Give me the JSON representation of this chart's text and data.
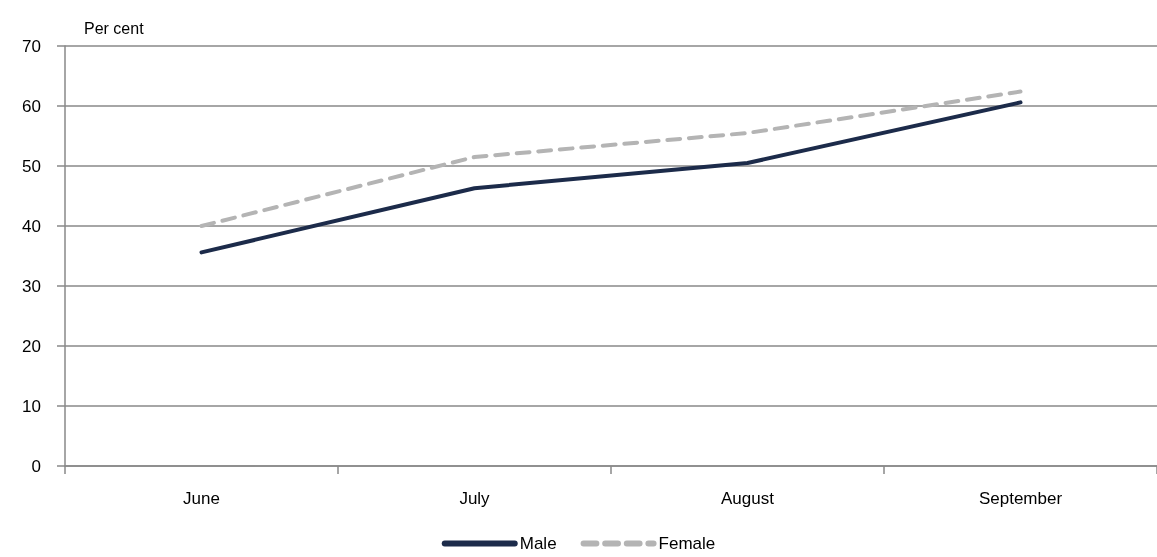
{
  "chart_data": {
    "type": "line",
    "ylabel": "Per cent",
    "categories": [
      "June",
      "July",
      "August",
      "September"
    ],
    "series": [
      {
        "name": "Male",
        "color": "#1c2b4a",
        "values": [
          35.6,
          46.3,
          50.5,
          60.6
        ],
        "line_style": "solid"
      },
      {
        "name": "Female",
        "color": "#b4b4b4",
        "values": [
          40,
          51.5,
          55.5,
          62.4
        ],
        "line_style": "dashed"
      }
    ],
    "ylim": [
      0,
      70
    ],
    "yticks": [
      0,
      10,
      20,
      30,
      40,
      50,
      60,
      70
    ],
    "grid": "y",
    "legend": "bottom",
    "marker": "none"
  }
}
